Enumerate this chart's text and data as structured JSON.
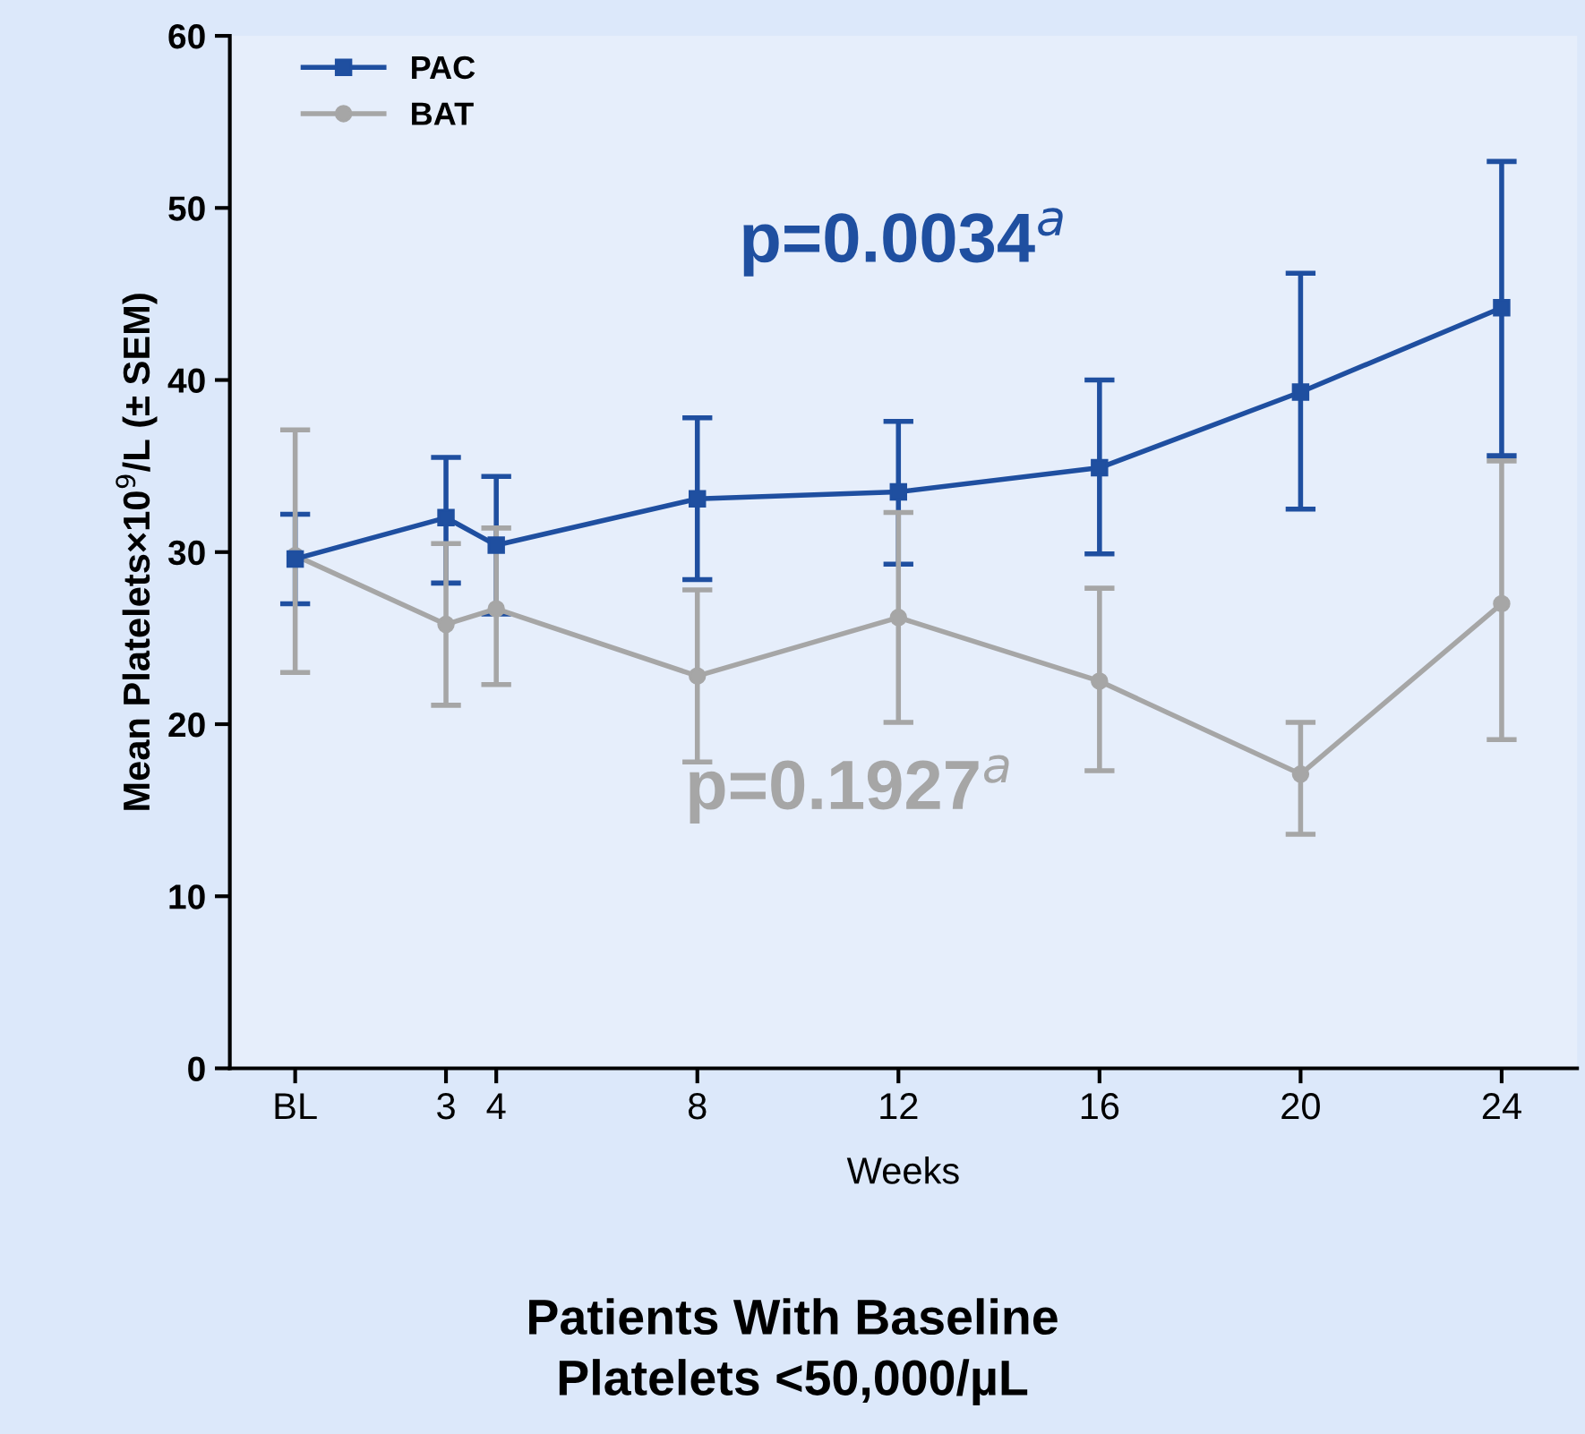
{
  "chart_data": {
    "type": "line",
    "title": "Patients With Baseline\nPlatelets <50,000/µL",
    "xlabel": "Weeks",
    "ylabel": "Mean Platelets×10$^{9}$/L (± SEM)",
    "x": [
      0,
      3,
      4,
      8,
      12,
      16,
      20,
      24
    ],
    "xlim": [
      -1.3,
      25.5
    ],
    "xticks": [
      {
        "value": 0,
        "label": "BL"
      },
      3,
      4,
      8,
      12,
      16,
      20,
      24
    ],
    "ylim": [
      0,
      60
    ],
    "yticks": [
      0,
      10,
      20,
      30,
      40,
      50,
      60
    ],
    "series": [
      {
        "name": "PAC",
        "color": "#1f4fa0",
        "marker": "square",
        "values": [
          29.6,
          32.0,
          30.4,
          33.1,
          33.5,
          34.9,
          39.3,
          44.2
        ],
        "errors": [
          [
            27.0,
            32.2
          ],
          [
            28.2,
            35.5
          ],
          [
            26.4,
            34.4
          ],
          [
            28.4,
            37.8
          ],
          [
            29.3,
            37.6
          ],
          [
            29.9,
            40.0
          ],
          [
            32.5,
            46.2
          ],
          [
            35.6,
            52.7
          ]
        ]
      },
      {
        "name": "BAT",
        "color": "#a6a6a6",
        "marker": "circle",
        "values": [
          29.8,
          25.8,
          26.7,
          22.8,
          26.2,
          22.5,
          17.1,
          27.0
        ],
        "errors": [
          [
            23.0,
            37.1
          ],
          [
            21.1,
            30.5
          ],
          [
            22.3,
            31.4
          ],
          [
            17.8,
            27.8
          ],
          [
            20.1,
            32.3
          ],
          [
            17.3,
            27.9
          ],
          [
            13.6,
            20.1
          ],
          [
            19.1,
            35.3
          ]
        ]
      }
    ],
    "annotations": [
      "p=0.0034$^{a}$",
      "p=0.1927$^{a}$"
    ],
    "legend": "top left",
    "grid": false,
    "line_style": "solid"
  }
}
